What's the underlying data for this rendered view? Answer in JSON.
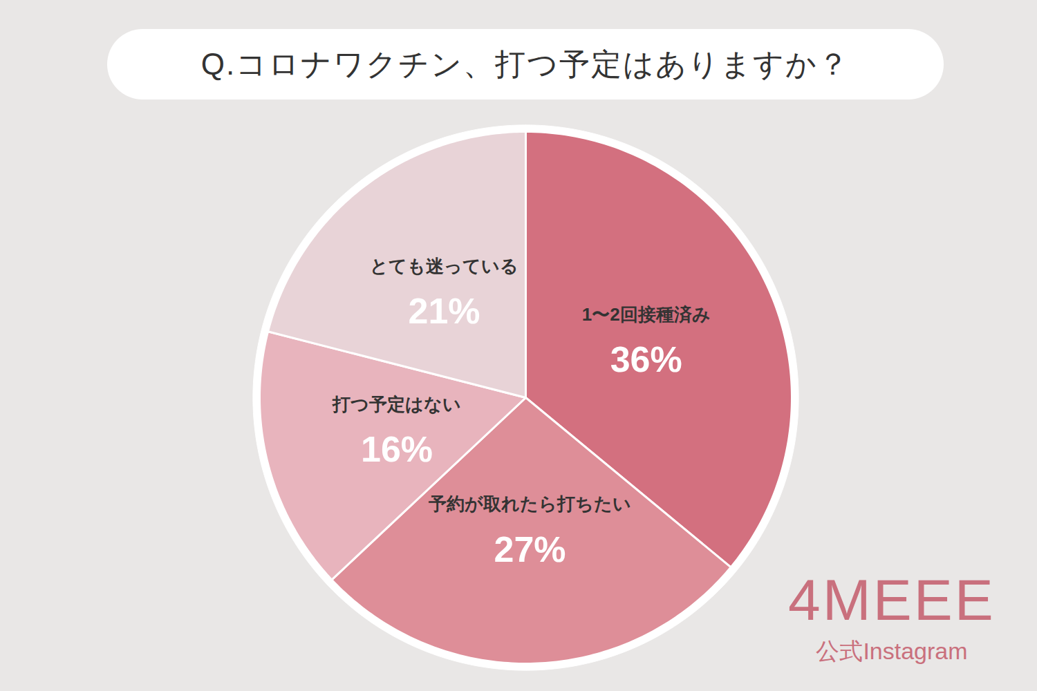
{
  "chart_data": {
    "type": "pie",
    "title": "Q.コロナワクチン、打つ予定はありますか？",
    "categories": [
      "1〜2回接種済み",
      "予約が取れたら打ちたい",
      "打つ予定はない",
      "とても迷っている"
    ],
    "values": [
      36,
      27,
      16,
      21
    ],
    "value_labels": [
      "36%",
      "27%",
      "16%",
      "21%"
    ],
    "colors": [
      "#d3707f",
      "#de8e98",
      "#e8b4bd",
      "#e8d3d7"
    ],
    "data_labels": true,
    "annotations": [
      "4MEEE",
      "公式Instagram"
    ]
  }
}
